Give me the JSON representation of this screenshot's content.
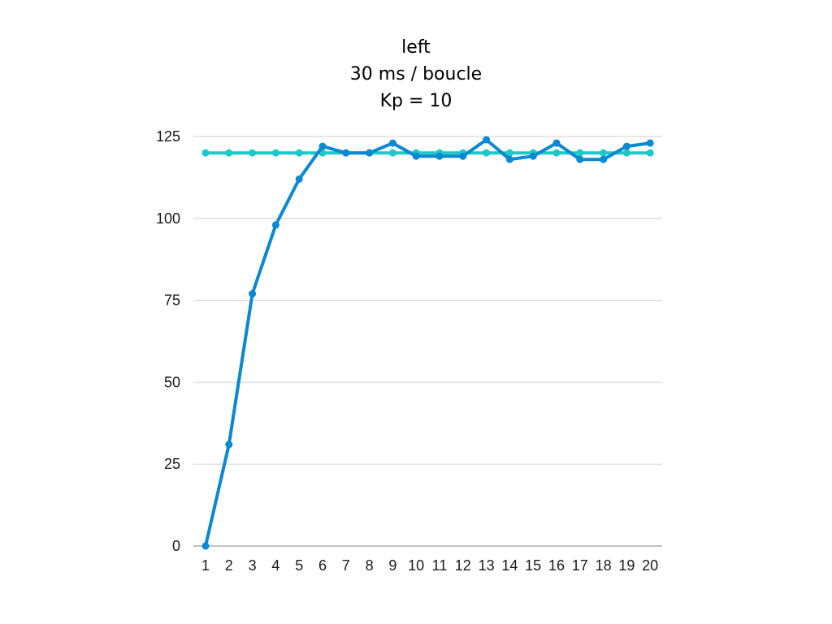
{
  "chart_data": {
    "type": "line",
    "title_lines": [
      "left",
      "30 ms / boucle",
      "Kp = 10"
    ],
    "categories": [
      "1",
      "2",
      "3",
      "4",
      "5",
      "6",
      "7",
      "8",
      "9",
      "10",
      "11",
      "12",
      "13",
      "14",
      "15",
      "16",
      "17",
      "18",
      "19",
      "20"
    ],
    "series": [
      {
        "color": "#0a88d0",
        "values": [
          0,
          31,
          77,
          98,
          112,
          122,
          120,
          120,
          123,
          119,
          119,
          119,
          124,
          118,
          119,
          123,
          118,
          118,
          122,
          123
        ]
      },
      {
        "color": "#1ec8c8",
        "values": [
          120,
          120,
          120,
          120,
          120,
          120,
          120,
          120,
          120,
          120,
          120,
          120,
          120,
          120,
          120,
          120,
          120,
          120,
          120,
          120
        ]
      }
    ],
    "xlabel": "",
    "ylabel": "",
    "ylim": [
      0,
      125
    ],
    "yticks": [
      0,
      25,
      50,
      75,
      100,
      125
    ],
    "grid": true,
    "legend": "none"
  }
}
